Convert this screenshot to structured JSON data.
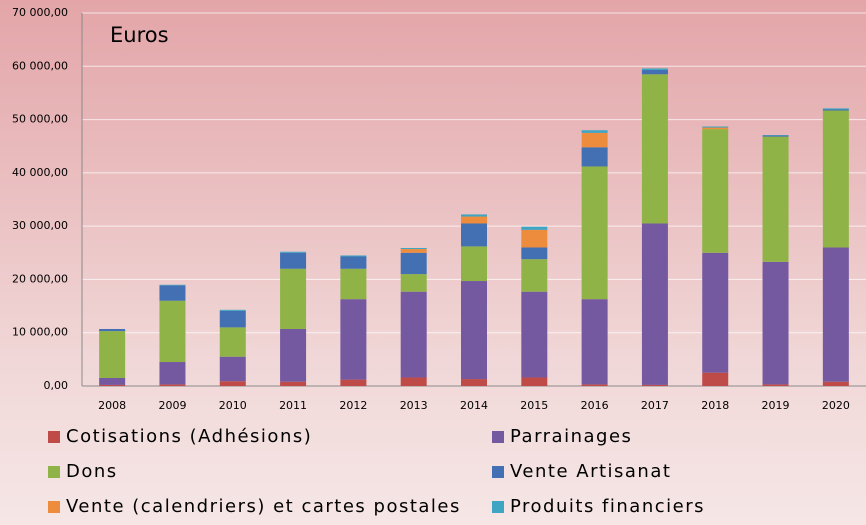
{
  "chart_data": {
    "type": "stacked_bar",
    "ylabel": "Euros",
    "categories": [
      "2008",
      "2009",
      "2010",
      "2011",
      "2012",
      "2013",
      "2014",
      "2015",
      "2016",
      "2017",
      "2018",
      "2019",
      "2020"
    ],
    "series": [
      {
        "name": "Cotisations (Adhésions)",
        "color": "#be4b48",
        "values": [
          200,
          300,
          900,
          800,
          1200,
          1600,
          1300,
          1600,
          300,
          200,
          2500,
          300,
          800
        ]
      },
      {
        "name": "Parrainages",
        "color": "#7459a0",
        "values": [
          1300,
          4200,
          4600,
          9900,
          15100,
          16100,
          18400,
          16100,
          16000,
          30300,
          22500,
          23000,
          25200
        ]
      },
      {
        "name": "Dons",
        "color": "#8fb347",
        "values": [
          8800,
          11500,
          5500,
          11300,
          5700,
          3300,
          6500,
          6100,
          24900,
          28000,
          23200,
          23500,
          25700
        ]
      },
      {
        "name": "Vente Artisanat",
        "color": "#4270b2",
        "values": [
          400,
          2900,
          3100,
          3000,
          2300,
          4000,
          4300,
          2200,
          3600,
          800,
          0,
          200,
          200
        ]
      },
      {
        "name": "Vente (calendriers) et cartes postales",
        "color": "#ec8c3c",
        "values": [
          0,
          0,
          0,
          0,
          0,
          700,
          1300,
          3300,
          2700,
          0,
          300,
          0,
          0
        ]
      },
      {
        "name": "Produits financiers",
        "color": "#3fa5c2",
        "values": [
          0,
          100,
          200,
          200,
          200,
          200,
          400,
          600,
          500,
          300,
          200,
          100,
          200
        ]
      }
    ],
    "ylim": [
      0,
      70000
    ],
    "yticks": [
      {
        "value": 0,
        "label": "0,00"
      },
      {
        "value": 10000,
        "label": "10 000,00"
      },
      {
        "value": 20000,
        "label": "20 000,00"
      },
      {
        "value": 30000,
        "label": "30 000,00"
      },
      {
        "value": 40000,
        "label": "40 000,00"
      },
      {
        "value": 50000,
        "label": "50 000,00"
      },
      {
        "value": 60000,
        "label": "60 000,00"
      },
      {
        "value": 70000,
        "label": "70 000,00"
      }
    ],
    "grid": true
  }
}
